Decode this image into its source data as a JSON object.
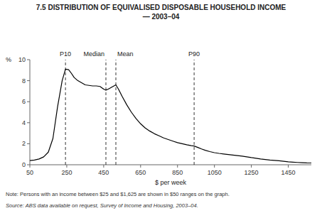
{
  "chart_data": {
    "type": "line",
    "title": "7.5 DISTRIBUTION OF EQUIVALISED DISPOSABLE HOUSEHOLD INCOME",
    "subtitle": "— 2003–04",
    "xlabel": "$ per week",
    "ylabel": "%",
    "xlim": [
      50,
      1575
    ],
    "ylim": [
      0,
      10
    ],
    "xticks": [
      50,
      250,
      450,
      650,
      850,
      1050,
      1250,
      1450
    ],
    "yticks": [
      0,
      2,
      4,
      6,
      8,
      10
    ],
    "grid": false,
    "color": "#000000",
    "line_style": "solid",
    "vlines": [
      {
        "x": 243,
        "label": "P10"
      },
      {
        "x": 462,
        "label": "Median"
      },
      {
        "x": 516,
        "label": "Mean"
      },
      {
        "x": 940,
        "label": "P90"
      }
    ],
    "note": "Note:  Persons with an income between $25 and $1,625 are shown in $50 ranges on the graph.",
    "source": "Source:  ABS data available on request, Survey of Income and Housing, 2003–04.",
    "x": [
      50,
      75,
      100,
      125,
      150,
      175,
      200,
      225,
      243,
      260,
      275,
      290,
      310,
      330,
      350,
      370,
      390,
      410,
      430,
      450,
      462,
      475,
      490,
      516,
      530,
      550,
      575,
      600,
      625,
      650,
      675,
      700,
      725,
      750,
      775,
      800,
      825,
      850,
      875,
      900,
      925,
      940,
      960,
      980,
      1000,
      1025,
      1050,
      1075,
      1100,
      1125,
      1150,
      1175,
      1200,
      1225,
      1250,
      1275,
      1300,
      1325,
      1350,
      1375,
      1400,
      1425,
      1450,
      1475,
      1500,
      1525,
      1550,
      1575
    ],
    "values": [
      0.4,
      0.45,
      0.55,
      0.75,
      1.2,
      2.5,
      5.5,
      8.0,
      9.1,
      9.05,
      8.7,
      8.3,
      8.0,
      7.8,
      7.6,
      7.55,
      7.5,
      7.5,
      7.45,
      7.2,
      7.1,
      7.2,
      7.35,
      7.6,
      7.2,
      6.5,
      5.7,
      5.0,
      4.4,
      3.9,
      3.5,
      3.2,
      2.95,
      2.75,
      2.55,
      2.4,
      2.25,
      2.1,
      2.0,
      1.9,
      1.82,
      1.78,
      1.65,
      1.5,
      1.38,
      1.25,
      1.15,
      1.08,
      1.02,
      0.97,
      0.92,
      0.87,
      0.82,
      0.75,
      0.68,
      0.62,
      0.55,
      0.5,
      0.45,
      0.42,
      0.38,
      0.33,
      0.28,
      0.25,
      0.22,
      0.2,
      0.18,
      0.17
    ]
  }
}
